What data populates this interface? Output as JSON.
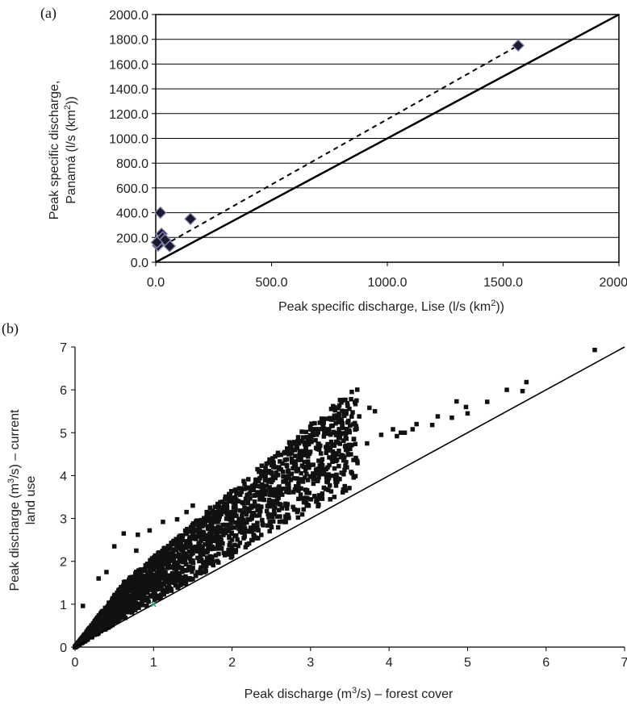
{
  "chart_data": [
    {
      "panel": "(a)",
      "type": "scatter",
      "ylabel_line1": "Peak specific discharge,",
      "ylabel_line2": "Panamá (l/s (km",
      "ylabel_line2_sup": "2",
      "ylabel_line2_end": "))",
      "xlabel": "Peak specific discharge,  Lise (l/s (km",
      "xlabel_sup": "2",
      "xlabel_end": "))",
      "xlim": [
        0,
        2000
      ],
      "ylim": [
        0,
        2000
      ],
      "x_ticks": [
        "0.0",
        "500.0",
        "1000.0",
        "1500.0",
        "2000.0"
      ],
      "y_ticks": [
        "0.0",
        "200.0",
        "400.0",
        "600.0",
        "800.0",
        "1000.0",
        "1200.0",
        "1400.0",
        "1600.0",
        "1800.0",
        "2000.0"
      ],
      "grid": "horizontal",
      "series": [
        {
          "marker": "diamond",
          "color": "#1a1a2e",
          "points": [
            [
              1565,
              1750
            ],
            [
              150,
              350
            ],
            [
              20,
              400
            ],
            [
              60,
              130
            ],
            [
              10,
              135
            ],
            [
              15,
              180
            ],
            [
              25,
              230
            ],
            [
              30,
              200
            ],
            [
              40,
              180
            ],
            [
              5,
              160
            ]
          ]
        }
      ],
      "lines": [
        {
          "style": "solid",
          "from": [
            0,
            0
          ],
          "to": [
            2000,
            2000
          ]
        },
        {
          "style": "dashed",
          "from": [
            0,
            100
          ],
          "to": [
            1565,
            1750
          ]
        }
      ]
    },
    {
      "panel": "(b)",
      "type": "scatter",
      "ylabel_line1_pre": "Peak discharge (m",
      "ylabel_line1_sup": "3",
      "ylabel_line1_end": "/s) – current",
      "ylabel_line2": "land use",
      "xlabel_pre": "Peak discharge (m",
      "xlabel_sup": "3",
      "xlabel_end": "/s) – forest cover",
      "xlim": [
        0,
        7
      ],
      "ylim": [
        0,
        7
      ],
      "x_ticks": [
        "0",
        "1",
        "2",
        "3",
        "4",
        "5",
        "6",
        "7"
      ],
      "y_ticks": [
        "0",
        "1",
        "2",
        "3",
        "4",
        "5",
        "6",
        "7"
      ],
      "grid": "off",
      "series": [
        {
          "marker": "square",
          "color": "#111111",
          "points": [
            [
              6.62,
              6.93
            ],
            [
              5.75,
              6.18
            ],
            [
              5.7,
              5.97
            ],
            [
              5.5,
              6.0
            ],
            [
              5.25,
              5.72
            ],
            [
              5.0,
              5.45
            ],
            [
              4.98,
              5.6
            ],
            [
              4.86,
              5.73
            ],
            [
              4.8,
              5.35
            ],
            [
              4.62,
              5.38
            ],
            [
              4.55,
              5.18
            ],
            [
              4.35,
              5.2
            ],
            [
              4.3,
              5.08
            ],
            [
              4.2,
              5.0
            ],
            [
              4.1,
              4.92
            ],
            [
              4.05,
              5.08
            ],
            [
              3.82,
              5.5
            ],
            [
              3.75,
              5.58
            ],
            [
              3.62,
              5.38
            ],
            [
              3.55,
              4.85
            ],
            [
              3.45,
              4.6
            ],
            [
              3.3,
              4.52
            ],
            [
              3.15,
              4.38
            ],
            [
              3.72,
              4.75
            ],
            [
              3.9,
              4.95
            ],
            [
              4.15,
              5.0
            ],
            [
              2.92,
              4.48
            ],
            [
              2.7,
              4.22
            ],
            [
              2.55,
              3.95
            ],
            [
              2.45,
              3.88
            ],
            [
              2.3,
              3.8
            ],
            [
              2.12,
              3.62
            ],
            [
              2.02,
              3.48
            ],
            [
              1.85,
              3.38
            ],
            [
              1.72,
              3.25
            ],
            [
              1.5,
              3.3
            ],
            [
              1.42,
              3.15
            ],
            [
              1.3,
              2.98
            ],
            [
              1.12,
              2.92
            ],
            [
              0.95,
              2.72
            ],
            [
              0.8,
              2.62
            ],
            [
              0.62,
              2.65
            ],
            [
              0.5,
              2.35
            ],
            [
              1.55,
              2.95
            ],
            [
              0.78,
              2.25
            ],
            [
              0.4,
              1.75
            ],
            [
              0.3,
              1.6
            ],
            [
              0.1,
              0.96
            ]
          ],
          "dense_band": {
            "x_to": 3.6,
            "lower_ratio": 1.05,
            "upper_ratio": 1.55,
            "upper_offset": 0.55
          }
        },
        {
          "marker": "x",
          "color": "#2a9d6f",
          "points": [
            [
              1.0,
              1.0
            ]
          ]
        }
      ],
      "lines": [
        {
          "style": "solid",
          "from": [
            0,
            0
          ],
          "to": [
            7,
            7
          ]
        }
      ]
    }
  ]
}
